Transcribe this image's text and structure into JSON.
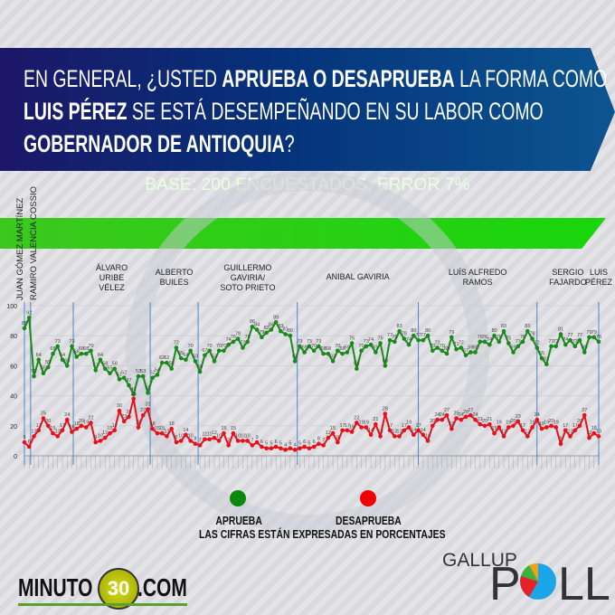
{
  "header": {
    "q1": "EN GENERAL, ¿USTED ",
    "q1b": "APRUEBA O DESAPRUEBA",
    "q1c": " LA FORMA COMO",
    "q2b": "LUIS PÉREZ",
    "q2c": " SE ESTÁ DESEMPEÑANDO EN SU LABOR COMO",
    "q3b": "GOBERNADOR DE ANTIOQUIA",
    "q3c": "?",
    "base": "BASE: 200 ENCUESTADOS, ERROR 7%"
  },
  "legend": {
    "approve": "APRUEBA",
    "disapprove": "DESAPRUEBA",
    "note": "LAS CIFRAS ESTÁN EXPRESADAS EN PORCENTAJES"
  },
  "logos": {
    "minuto": "MINUTO",
    "minuto_num": "30",
    "minuto_dom": ".COM",
    "gallup": "GALLUP",
    "poll_p": "P",
    "poll_ll": "LL"
  },
  "colors": {
    "approve": "#1a8a1a",
    "disapprove": "#e8101a",
    "separator": "#3a7fc0"
  },
  "chart_data": {
    "type": "line",
    "title": "",
    "ylim": [
      0,
      100
    ],
    "yticks": [
      0,
      20,
      40,
      60,
      80,
      100
    ],
    "periods": [
      {
        "name": "JUAN GÓMEZ MARTÍNEZ",
        "start": 0,
        "vertical": true
      },
      {
        "name": "RAMIRO VALENCIA COSSIO",
        "start": 1.3,
        "vertical": true
      },
      {
        "name": "ÁLVARO|URIBE|VÉLEZ",
        "start": 10.3
      },
      {
        "name": "ALBERTO|BUILES",
        "start": 26.5
      },
      {
        "name": "GUILLERMO|GAVIRIA/|SOTO PRIETO",
        "start": 36.6
      },
      {
        "name": "ANIBAL GAVIRIA",
        "start": 57.5
      },
      {
        "name": "LUÍS ALFREDO|RAMOS",
        "start": 83
      },
      {
        "name": "SERGIO|FAJARDO",
        "start": 108
      },
      {
        "name": "LUIS|PÉREZ",
        "start": 121
      }
    ],
    "series": [
      {
        "name": "APRUEBA",
        "values": [
          85,
          92,
          53,
          64,
          55,
          59,
          68,
          73,
          64,
          60,
          73,
          66,
          68,
          68,
          70,
          57,
          64,
          58,
          55,
          58,
          51,
          52,
          47,
          41,
          53,
          53,
          42,
          52,
          54,
          62,
          62,
          58,
          72,
          65,
          64,
          70,
          63,
          56,
          67,
          70,
          63,
          70,
          70,
          74,
          76,
          78,
          72,
          76,
          86,
          84,
          79,
          82,
          84,
          89,
          83,
          81,
          80,
          63,
          73,
          69,
          73,
          70,
          73,
          68,
          68,
          63,
          70,
          68,
          69,
          75,
          58,
          70,
          73,
          74,
          69,
          75,
          60,
          77,
          76,
          83,
          78,
          74,
          80,
          77,
          77,
          80,
          70,
          72,
          70,
          68,
          79,
          71,
          72,
          67,
          69,
          69,
          76,
          76,
          74,
          80,
          76,
          83,
          75,
          69,
          73,
          76,
          83,
          78,
          72,
          65,
          61,
          73,
          73,
          81,
          74,
          77,
          73,
          77,
          69,
          79,
          79,
          76
        ]
      },
      {
        "name": "DESAPRUEBA",
        "values": [
          9,
          6,
          13,
          17,
          25,
          20,
          15,
          13,
          17,
          24,
          16,
          18,
          20,
          19,
          22,
          9,
          10,
          12,
          15,
          17,
          30,
          23,
          26,
          38,
          19,
          27,
          31,
          18,
          15,
          15,
          13,
          18,
          9,
          10,
          14,
          10,
          8,
          7,
          11,
          11,
          12,
          10,
          15,
          7,
          15,
          10,
          10,
          10,
          7,
          9,
          6,
          5,
          5,
          6,
          5,
          4,
          5,
          4,
          5,
          6,
          5,
          6,
          8,
          7,
          12,
          15,
          9,
          17,
          17,
          16,
          22,
          19,
          19,
          14,
          21,
          13,
          28,
          17,
          13,
          13,
          17,
          19,
          14,
          17,
          14,
          10,
          20,
          24,
          24,
          27,
          18,
          25,
          24,
          26,
          27,
          24,
          21,
          20,
          21,
          15,
          19,
          13,
          19,
          20,
          23,
          17,
          13,
          19,
          24,
          18,
          19,
          20,
          19,
          8,
          17,
          13,
          17,
          20,
          27,
          12,
          15,
          13
        ]
      }
    ]
  }
}
